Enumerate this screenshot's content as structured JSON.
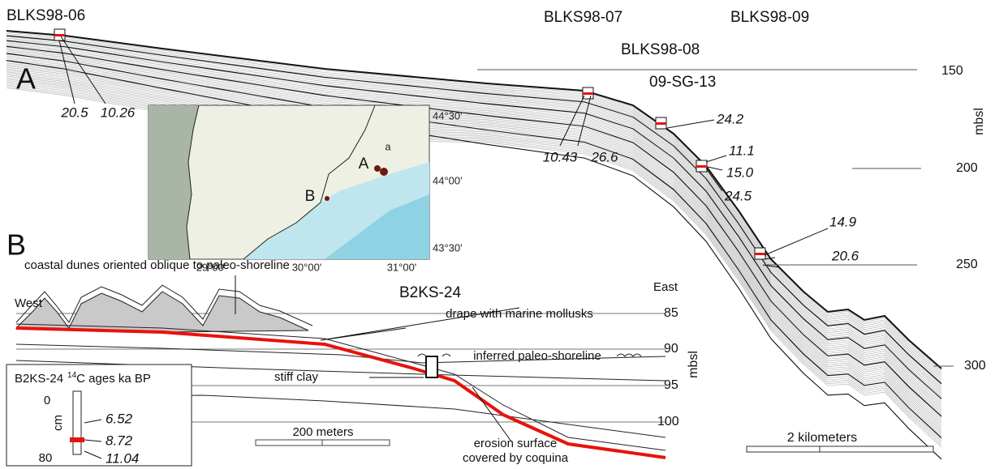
{
  "panel_a": {
    "label": "A",
    "cores": [
      "BLKS98-06",
      "BLKS98-07",
      "BLKS98-09",
      "BLKS98-08",
      "09-SG-13"
    ],
    "depths": [
      "150",
      "200",
      "250",
      "300"
    ],
    "depth_unit": "mbsl",
    "ages": [
      "20.5",
      "10.26",
      "10.43",
      "26.6",
      "24.2",
      "11.1",
      "15.0",
      "24.5",
      "14.9",
      "20.6"
    ],
    "scale_bar": "2 kilometers"
  },
  "map": {
    "lat_labels": [
      "44°30'",
      "44°00'",
      "43°30'"
    ],
    "lon_labels": [
      "29°00'",
      "30°00'",
      "31°00'"
    ],
    "sites": [
      "A",
      "B"
    ],
    "site_note": "a"
  },
  "panel_b": {
    "label": "B",
    "dunes_note": "coastal dunes oriented oblique to paleo-shoreline",
    "core": "B2KS-24",
    "west": "West",
    "east": "East",
    "depths": [
      "85",
      "90",
      "95",
      "100"
    ],
    "depth_unit": "mbsl",
    "drape_note": "drape with marine mollusks",
    "shoreline_note": "inferred paleo-shoreline",
    "clay_note": "stiff clay",
    "scale_bar": "200 meters",
    "erosion_note": [
      "erosion surface",
      "covered by coquina"
    ],
    "inset": {
      "title": "B2KS-24",
      "title_sup": "14",
      "title_rest": "C ages ka BP",
      "top": "0",
      "unit": "cm",
      "bottom": "80",
      "ages": [
        "6.52",
        "8.72",
        "11.04"
      ]
    }
  }
}
